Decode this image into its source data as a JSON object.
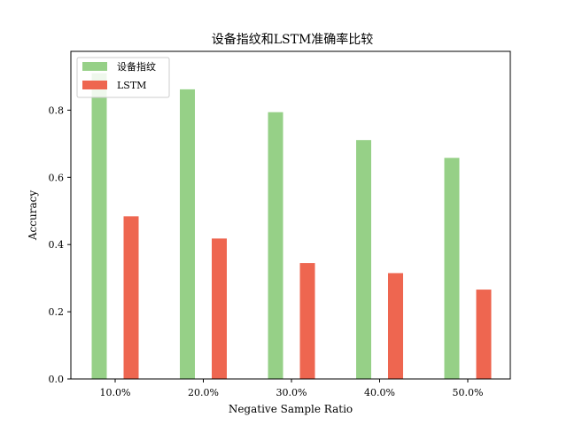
{
  "chart_data": {
    "type": "bar",
    "title": "设备指纹和LSTM准确率比较",
    "xlabel": "Negative Sample Ratio",
    "ylabel": "Accuracy",
    "categories": [
      "10.0%",
      "20.0%",
      "30.0%",
      "40.0%",
      "50.0%"
    ],
    "series": [
      {
        "name": "设备指纹",
        "color": "#96d087",
        "values": [
          0.91,
          0.862,
          0.794,
          0.711,
          0.658
        ]
      },
      {
        "name": "LSTM",
        "color": "#ee6650",
        "values": [
          0.484,
          0.418,
          0.345,
          0.315,
          0.266
        ]
      }
    ],
    "ylim": [
      0,
      0.975
    ],
    "yticks": [
      "0.0",
      "0.2",
      "0.4",
      "0.6",
      "0.8"
    ],
    "grid": false,
    "legend_position": "top-left"
  }
}
